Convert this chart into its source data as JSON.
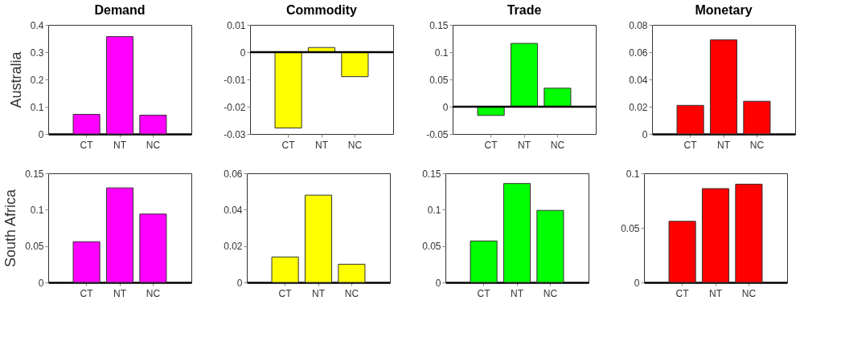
{
  "chart_data": [
    {
      "type": "bar",
      "title": "Demand",
      "ylabel": "Australia",
      "categories": [
        "CT",
        "NT",
        "NC"
      ],
      "values": [
        0.072,
        0.357,
        0.069
      ],
      "color": "#ff00ff",
      "ylim": [
        0,
        0.4
      ],
      "yticks": [
        0,
        0.1,
        0.2,
        0.3,
        0.4
      ],
      "grid": false
    },
    {
      "type": "bar",
      "title": "Commodity",
      "categories": [
        "CT",
        "NT",
        "NC"
      ],
      "values": [
        -0.0278,
        0.0017,
        -0.009
      ],
      "color": "#ffff00",
      "ylim": [
        -0.03,
        0.01
      ],
      "yticks": [
        -0.03,
        -0.02,
        -0.01,
        0,
        0.01
      ],
      "ref_lines": [
        {
          "axis": "y",
          "value": 0,
          "color": "#000000"
        }
      ],
      "grid": false
    },
    {
      "type": "bar",
      "title": "Trade",
      "categories": [
        "CT",
        "NT",
        "NC"
      ],
      "values": [
        -0.016,
        0.116,
        0.034
      ],
      "color": "#00ff00",
      "ylim": [
        -0.05,
        0.15
      ],
      "yticks": [
        -0.05,
        0,
        0.05,
        0.1,
        0.15
      ],
      "ref_lines": [
        {
          "axis": "y",
          "value": 0,
          "color": "#000000"
        }
      ],
      "grid": false
    },
    {
      "type": "bar",
      "title": "Monetary",
      "categories": [
        "CT",
        "NT",
        "NC"
      ],
      "values": [
        0.021,
        0.069,
        0.024
      ],
      "color": "#ff0000",
      "ylim": [
        0,
        0.08
      ],
      "yticks": [
        0,
        0.02,
        0.04,
        0.06,
        0.08
      ],
      "grid": false
    },
    {
      "type": "bar",
      "ylabel": "South Africa",
      "categories": [
        "CT",
        "NT",
        "NC"
      ],
      "values": [
        0.056,
        0.13,
        0.094
      ],
      "color": "#ff00ff",
      "ylim": [
        0,
        0.15
      ],
      "yticks": [
        0,
        0.05,
        0.1,
        0.15
      ],
      "grid": false
    },
    {
      "type": "bar",
      "categories": [
        "CT",
        "NT",
        "NC"
      ],
      "values": [
        0.014,
        0.048,
        0.01
      ],
      "color": "#ffff00",
      "ylim": [
        0,
        0.06
      ],
      "yticks": [
        0,
        0.02,
        0.04,
        0.06
      ],
      "grid": false
    },
    {
      "type": "bar",
      "categories": [
        "CT",
        "NT",
        "NC"
      ],
      "values": [
        0.057,
        0.136,
        0.099
      ],
      "color": "#00ff00",
      "ylim": [
        0,
        0.15
      ],
      "yticks": [
        0,
        0.05,
        0.1,
        0.15
      ],
      "grid": false
    },
    {
      "type": "bar",
      "categories": [
        "CT",
        "NT",
        "NC"
      ],
      "values": [
        0.056,
        0.086,
        0.09
      ],
      "color": "#ff0000",
      "ylim": [
        0,
        0.1
      ],
      "yticks": [
        0,
        0.05,
        0.1
      ],
      "grid": false
    }
  ]
}
